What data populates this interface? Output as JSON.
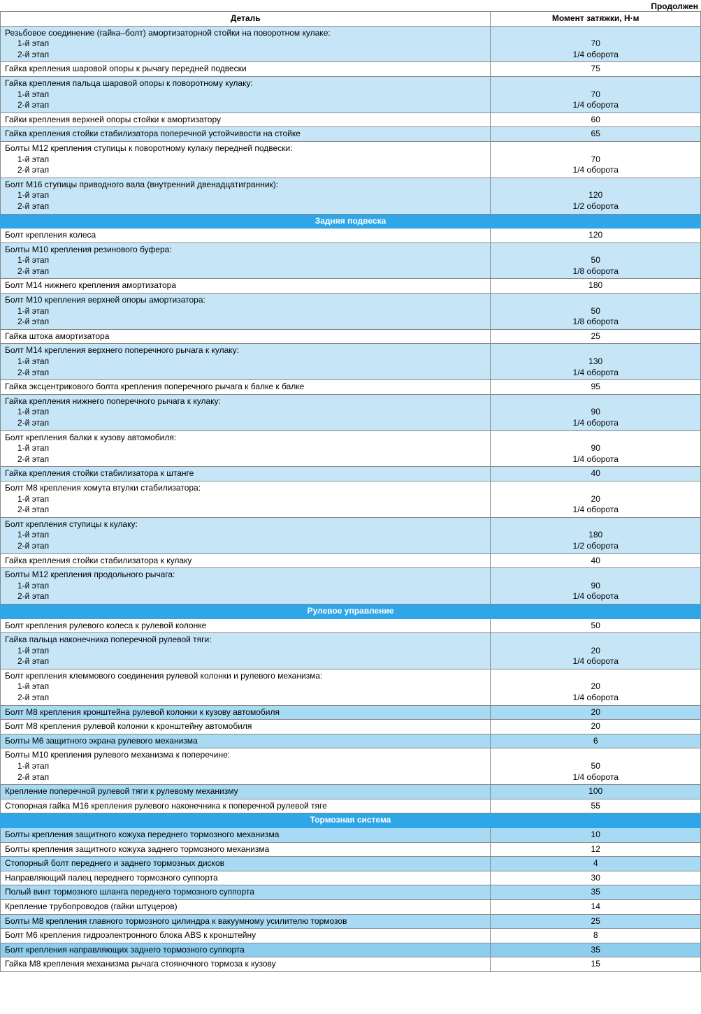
{
  "page": {
    "continuation_label": "Продолжен",
    "columns": {
      "detail": "Деталь",
      "torque": "Момент затяжки, Н·м"
    }
  },
  "colors": {
    "section_header_bg": "#2fa6e7",
    "section_header_fg": "#ffffff",
    "band_light": "#c6e6f7",
    "band_mid": "#a9daf3",
    "band_dark": "#8fcdef",
    "border": "#888888"
  },
  "typography": {
    "base_fontsize_pt": 9,
    "header_fontsize_pt": 10,
    "font_family": "Arial"
  },
  "rows": [
    {
      "type": "multi",
      "band": "light",
      "lines": [
        "Резьбовое соединение (гайка–болт) амортизаторной стойки на поворотном кулаке:",
        "1-й этап",
        "2-й этап"
      ],
      "values": [
        "",
        "70",
        "1/4 оборота"
      ]
    },
    {
      "type": "single",
      "band": "white",
      "detail": "Гайка крепления шаровой опоры к рычагу передней подвески",
      "value": "75"
    },
    {
      "type": "multi",
      "band": "light",
      "lines": [
        "Гайка крепления пальца шаровой опоры к поворотному кулаку:",
        "1-й этап",
        "2-й этап"
      ],
      "values": [
        "",
        "70",
        "1/4 оборота"
      ]
    },
    {
      "type": "single",
      "band": "white",
      "detail": "Гайки крепления верхней опоры стойки к амортизатору",
      "value": "60"
    },
    {
      "type": "single",
      "band": "light",
      "detail": "Гайка крепления стойки стабилизатора поперечной устойчивости на стойке",
      "value": "65"
    },
    {
      "type": "multi",
      "band": "white",
      "lines": [
        "Болты М12 крепления ступицы к поворотному кулаку передней подвески:",
        "1-й этап",
        "2-й этап"
      ],
      "values": [
        "",
        "70",
        "1/4 оборота"
      ]
    },
    {
      "type": "multi",
      "band": "light",
      "lines": [
        "Болт М16 ступицы приводного вала (внутренний двенадцатигранник):",
        "1-й этап",
        "2-й этап"
      ],
      "values": [
        "",
        "120",
        "1/2 оборота"
      ]
    },
    {
      "type": "section",
      "label": "Задняя подвеска"
    },
    {
      "type": "single",
      "band": "white",
      "detail": "Болт крепления колеса",
      "value": "120"
    },
    {
      "type": "multi",
      "band": "light",
      "lines": [
        "Болты М10 крепления резинового буфера:",
        "1-й этап",
        "2-й этап"
      ],
      "values": [
        "",
        "50",
        "1/8 оборота"
      ]
    },
    {
      "type": "single",
      "band": "white",
      "detail": "Болт М14 нижнего крепления амортизатора",
      "value": "180"
    },
    {
      "type": "multi",
      "band": "light",
      "lines": [
        "Болт М10 крепления верхней опоры амортизатора:",
        "1-й этап",
        "2-й этап"
      ],
      "values": [
        "",
        "50",
        "1/8 оборота"
      ]
    },
    {
      "type": "single",
      "band": "white",
      "detail": "Гайка штока амортизатора",
      "value": "25"
    },
    {
      "type": "multi",
      "band": "light",
      "lines": [
        "Болт М14 крепления верхнего  поперечного рычага к кулаку:",
        "1-й этап",
        "2-й этап"
      ],
      "values": [
        "",
        "130",
        "1/4 оборота"
      ]
    },
    {
      "type": "single",
      "band": "white",
      "detail": "Гайка эксцентрикового болта крепления поперечного рычага к балке к балке",
      "value": "95"
    },
    {
      "type": "multi",
      "band": "light",
      "lines": [
        "Гайка крепления нижнего поперечного рычага к кулаку:",
        "1-й этап",
        "2-й этап"
      ],
      "values": [
        "",
        "90",
        "1/4 оборота"
      ]
    },
    {
      "type": "multi",
      "band": "white",
      "lines": [
        "Болт крепления балки к кузову автомобиля:",
        "1-й этап",
        "2-й этап"
      ],
      "values": [
        "",
        "90",
        "1/4 оборота"
      ]
    },
    {
      "type": "single",
      "band": "light",
      "detail": "Гайка крепления стойки стабилизатора к штанге",
      "value": "40"
    },
    {
      "type": "multi",
      "band": "white",
      "lines": [
        "Болт М8 крепления хомута втулки стабилизатора:",
        "1-й этап",
        "2-й этап"
      ],
      "values": [
        "",
        "20",
        "1/4 оборота"
      ]
    },
    {
      "type": "multi",
      "band": "light",
      "lines": [
        "Болт крепления ступицы к кулаку:",
        "1-й этап",
        "2-й этап"
      ],
      "values": [
        "",
        "180",
        "1/2 оборота"
      ]
    },
    {
      "type": "single",
      "band": "white",
      "detail": "Гайка крепления стойки стабилизатора к кулаку",
      "value": "40"
    },
    {
      "type": "multi",
      "band": "light",
      "lines": [
        "Болты М12 крепления продольного рычага:",
        "1-й этап",
        "2-й этап"
      ],
      "values": [
        "",
        "90",
        "1/4 оборота"
      ]
    },
    {
      "type": "section",
      "label": "Рулевое управление"
    },
    {
      "type": "single",
      "band": "white",
      "detail": "Болт крепления рулевого колеса к рулевой колонке",
      "value": "50"
    },
    {
      "type": "multi",
      "band": "light",
      "lines": [
        "Гайка пальца наконечника поперечной рулевой тяги:",
        "1-й этап",
        "2-й этап"
      ],
      "values": [
        "",
        "20",
        "1/4 оборота"
      ]
    },
    {
      "type": "multi",
      "band": "white",
      "lines": [
        "Болт крепления клеммового соединения рулевой колонки и рулевого механизма:",
        "1-й этап",
        "2-й этап"
      ],
      "values": [
        "",
        "20",
        "1/4 оборота"
      ]
    },
    {
      "type": "single",
      "band": "mid",
      "detail": "Болт М8 крепления кронштейна рулевой колонки к кузову автомобиля",
      "value": "20"
    },
    {
      "type": "single",
      "band": "white",
      "detail": "Болт М8 крепления рулевой колонки к кронштейну автомобиля",
      "value": "20"
    },
    {
      "type": "single",
      "band": "mid",
      "detail": "Болты М6 защитного экрана рулевого механизма",
      "value": "6"
    },
    {
      "type": "multi",
      "band": "white",
      "lines": [
        "Болты М10 крепления рулевого механизма к поперечине:",
        "1-й этап",
        "2-й этап"
      ],
      "values": [
        "",
        "50",
        "1/4 оборота"
      ]
    },
    {
      "type": "single",
      "band": "mid",
      "detail": "Крепление поперечной рулевой тяги к рулевому механизму",
      "value": "100"
    },
    {
      "type": "single",
      "band": "white",
      "detail": "Стопорная гайка М16 крепления рулевого наконечника к поперечной рулевой тяге",
      "value": "55"
    },
    {
      "type": "section",
      "label": "Тормозная система"
    },
    {
      "type": "single",
      "band": "mid",
      "detail": "Болты крепления защитного кожуха переднего тормозного механизма",
      "value": "10"
    },
    {
      "type": "single",
      "band": "white",
      "detail": "Болты крепления защитного кожуха заднего тормозного механизма",
      "value": "12"
    },
    {
      "type": "single",
      "band": "mid",
      "detail": "Стопорный болт переднего и заднего тормозных дисков",
      "value": "4"
    },
    {
      "type": "single",
      "band": "white",
      "detail": "Направляющий палец переднего тормозного суппорта",
      "value": "30"
    },
    {
      "type": "single",
      "band": "mid",
      "detail": "Полый винт тормозного шланга переднего тормозного суппорта",
      "value": "35"
    },
    {
      "type": "single",
      "band": "white",
      "detail": "Крепление трубопроводов (гайки штуцеров)",
      "value": "14"
    },
    {
      "type": "single",
      "band": "mid",
      "detail": "Болты М8 крепления главного тормозного цилиндра к вакуумному усилителю тормозов",
      "value": "25"
    },
    {
      "type": "single",
      "band": "white",
      "detail": "Болт М6 крепления гидроэлектронного блока ABS к кронштейну",
      "value": "8"
    },
    {
      "type": "single",
      "band": "dark",
      "detail": "Болт крепления направляющих заднего тормозного суппорта",
      "value": "35"
    },
    {
      "type": "single",
      "band": "white",
      "detail": "Гайка М8 крепления механизма рычага стояночного тормоза к кузову",
      "value": "15"
    }
  ]
}
